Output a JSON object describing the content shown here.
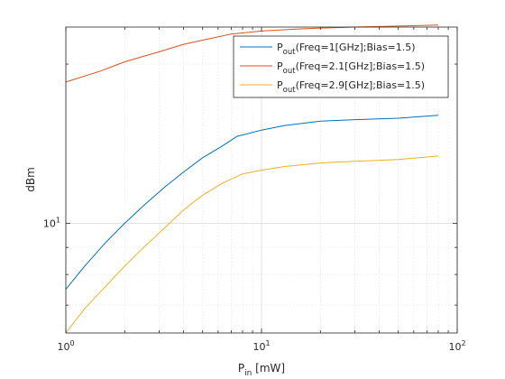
{
  "chart_data": {
    "type": "line",
    "title": "",
    "xlabel": {
      "main": "P",
      "sub": "in",
      "rest": " [mW]"
    },
    "ylabel": "dBm",
    "xscale": "log",
    "yscale": "log",
    "xlim": [
      1,
      100
    ],
    "ylim": [
      6.2,
      23.5
    ],
    "xticks": [
      {
        "value": 1,
        "base": "10",
        "exp": "0"
      },
      {
        "value": 10,
        "base": "10",
        "exp": "1"
      },
      {
        "value": 100,
        "base": "10",
        "exp": "2"
      }
    ],
    "yticks": [
      {
        "value": 10,
        "base": "10",
        "exp": "1"
      }
    ],
    "grid": true,
    "legend_position": "top-right",
    "series": [
      {
        "name": "P",
        "name_sub": "out",
        "name_rest": "(Freq=1[GHz];Bias=1.5)",
        "color": "#0072BD",
        "x": [
          1,
          1.25,
          1.6,
          2,
          2.5,
          3.2,
          4,
          5,
          6.3,
          7.5,
          10,
          13,
          20,
          30,
          50,
          80
        ],
        "y": [
          7.5,
          8.3,
          9.2,
          10.0,
          10.8,
          11.7,
          12.5,
          13.3,
          14.0,
          14.6,
          15.0,
          15.3,
          15.6,
          15.7,
          15.8,
          16.0
        ]
      },
      {
        "name": "P",
        "name_sub": "out",
        "name_rest": "(Freq=2.1[GHz];Bias=1.5)",
        "color": "#D95319",
        "x": [
          1,
          1.5,
          2,
          3,
          4,
          5,
          7,
          10,
          15,
          20,
          30,
          50,
          80
        ],
        "y": [
          18.5,
          19.4,
          20.2,
          21.1,
          21.8,
          22.2,
          22.8,
          23.1,
          23.3,
          23.4,
          23.5,
          23.6,
          23.7
        ]
      },
      {
        "name": "P",
        "name_sub": "out",
        "name_rest": "(Freq=2.9[GHz];Bias=1.5)",
        "color": "#EDB120",
        "x": [
          1,
          1.25,
          1.6,
          2,
          2.5,
          3.2,
          4,
          5,
          6.3,
          8,
          10,
          13,
          20,
          30,
          50,
          80
        ],
        "y": [
          6.2,
          6.9,
          7.6,
          8.3,
          9.0,
          9.8,
          10.6,
          11.3,
          11.9,
          12.4,
          12.6,
          12.8,
          13.0,
          13.1,
          13.2,
          13.4
        ]
      }
    ]
  }
}
